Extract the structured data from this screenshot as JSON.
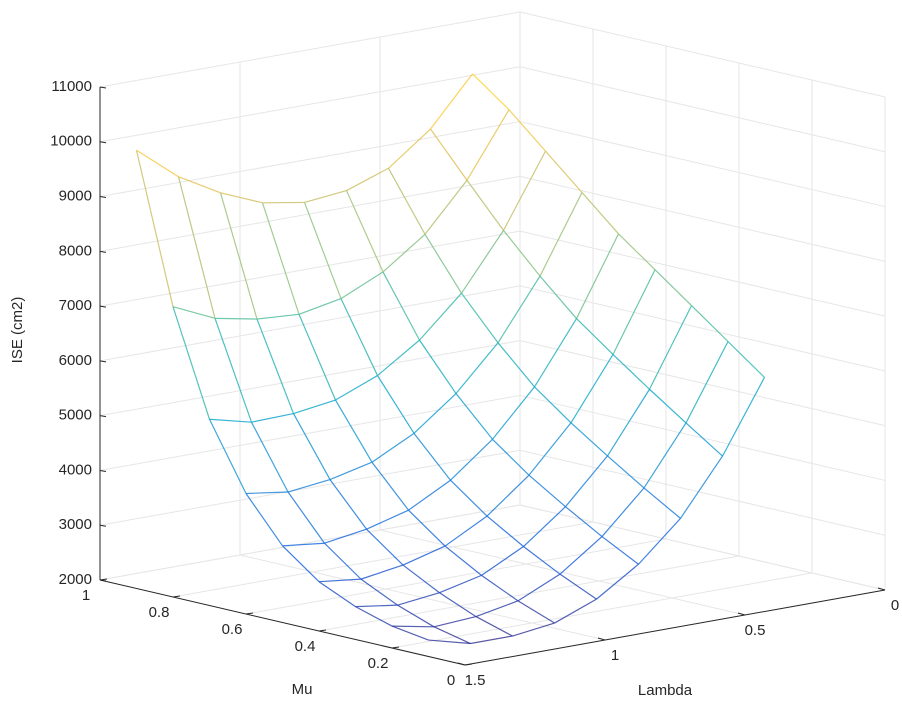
{
  "chart_data": {
    "type": "surface",
    "xlabel": "Lambda",
    "ylabel": "Mu",
    "zlabel": "ISE (cm2)",
    "x": [
      0.3,
      0.45,
      0.6,
      0.75,
      0.9,
      1.05,
      1.2,
      1.35,
      1.5
    ],
    "y": [
      0.1,
      0.2,
      0.3,
      0.4,
      0.5,
      0.6,
      0.7,
      0.8,
      0.9
    ],
    "z": [
      [
        6000,
        4700,
        3700,
        3000,
        2500,
        2200,
        2100,
        2100,
        2300
      ],
      [
        6500,
        5150,
        4100,
        3350,
        2800,
        2450,
        2300,
        2250,
        2400
      ],
      [
        7000,
        5610,
        4530,
        3740,
        3150,
        2760,
        2580,
        2490,
        2600
      ],
      [
        7500,
        6090,
        4980,
        4160,
        3550,
        3140,
        2930,
        2810,
        2900
      ],
      [
        8000,
        6590,
        5480,
        4660,
        4050,
        3640,
        3430,
        3310,
        3400
      ],
      [
        8600,
        7210,
        6130,
        5340,
        4750,
        4360,
        4180,
        4090,
        4200
      ],
      [
        9200,
        7890,
        6880,
        6160,
        5650,
        5340,
        5230,
        5210,
        5400
      ],
      [
        9800,
        8650,
        7800,
        7250,
        6900,
        6750,
        6800,
        6950,
        7300
      ],
      [
        10300,
        9430,
        8850,
        8580,
        8500,
        8630,
        8950,
        9380,
        10000
      ]
    ],
    "xlim": [
      0,
      1.5
    ],
    "xticks": [
      0,
      0.5,
      1,
      1.5
    ],
    "ylim": [
      0,
      1
    ],
    "yticks": [
      0,
      0.2,
      0.4,
      0.6,
      0.8,
      1
    ],
    "zlim": [
      2000,
      11000
    ],
    "zticks": [
      2000,
      3000,
      4000,
      5000,
      6000,
      7000,
      8000,
      9000,
      10000,
      11000
    ],
    "grid": true,
    "colormap": [
      "#352a87",
      "#0f5cdd",
      "#1481d6",
      "#06a4ca",
      "#2eb7a4",
      "#87bf77",
      "#d1bb59",
      "#fec832",
      "#f9fb0e"
    ]
  }
}
